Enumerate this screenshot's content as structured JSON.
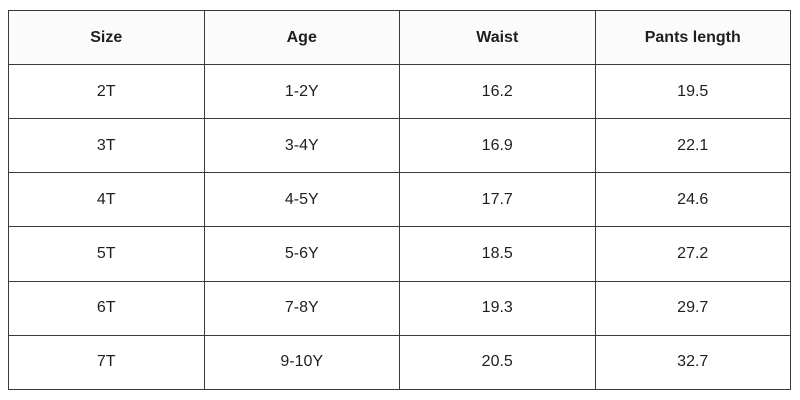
{
  "table": {
    "header": [
      "Size",
      "Age",
      "Waist",
      "Pants length"
    ],
    "rows": [
      [
        "2T",
        "1-2Y",
        "16.2",
        "19.5"
      ],
      [
        "3T",
        "3-4Y",
        "16.9",
        "22.1"
      ],
      [
        "4T",
        "4-5Y",
        "17.7",
        "24.6"
      ],
      [
        "5T",
        "5-6Y",
        "18.5",
        "27.2"
      ],
      [
        "6T",
        "7-8Y",
        "19.3",
        "29.7"
      ],
      [
        "7T",
        "9-10Y",
        "20.5",
        "32.7"
      ]
    ]
  }
}
